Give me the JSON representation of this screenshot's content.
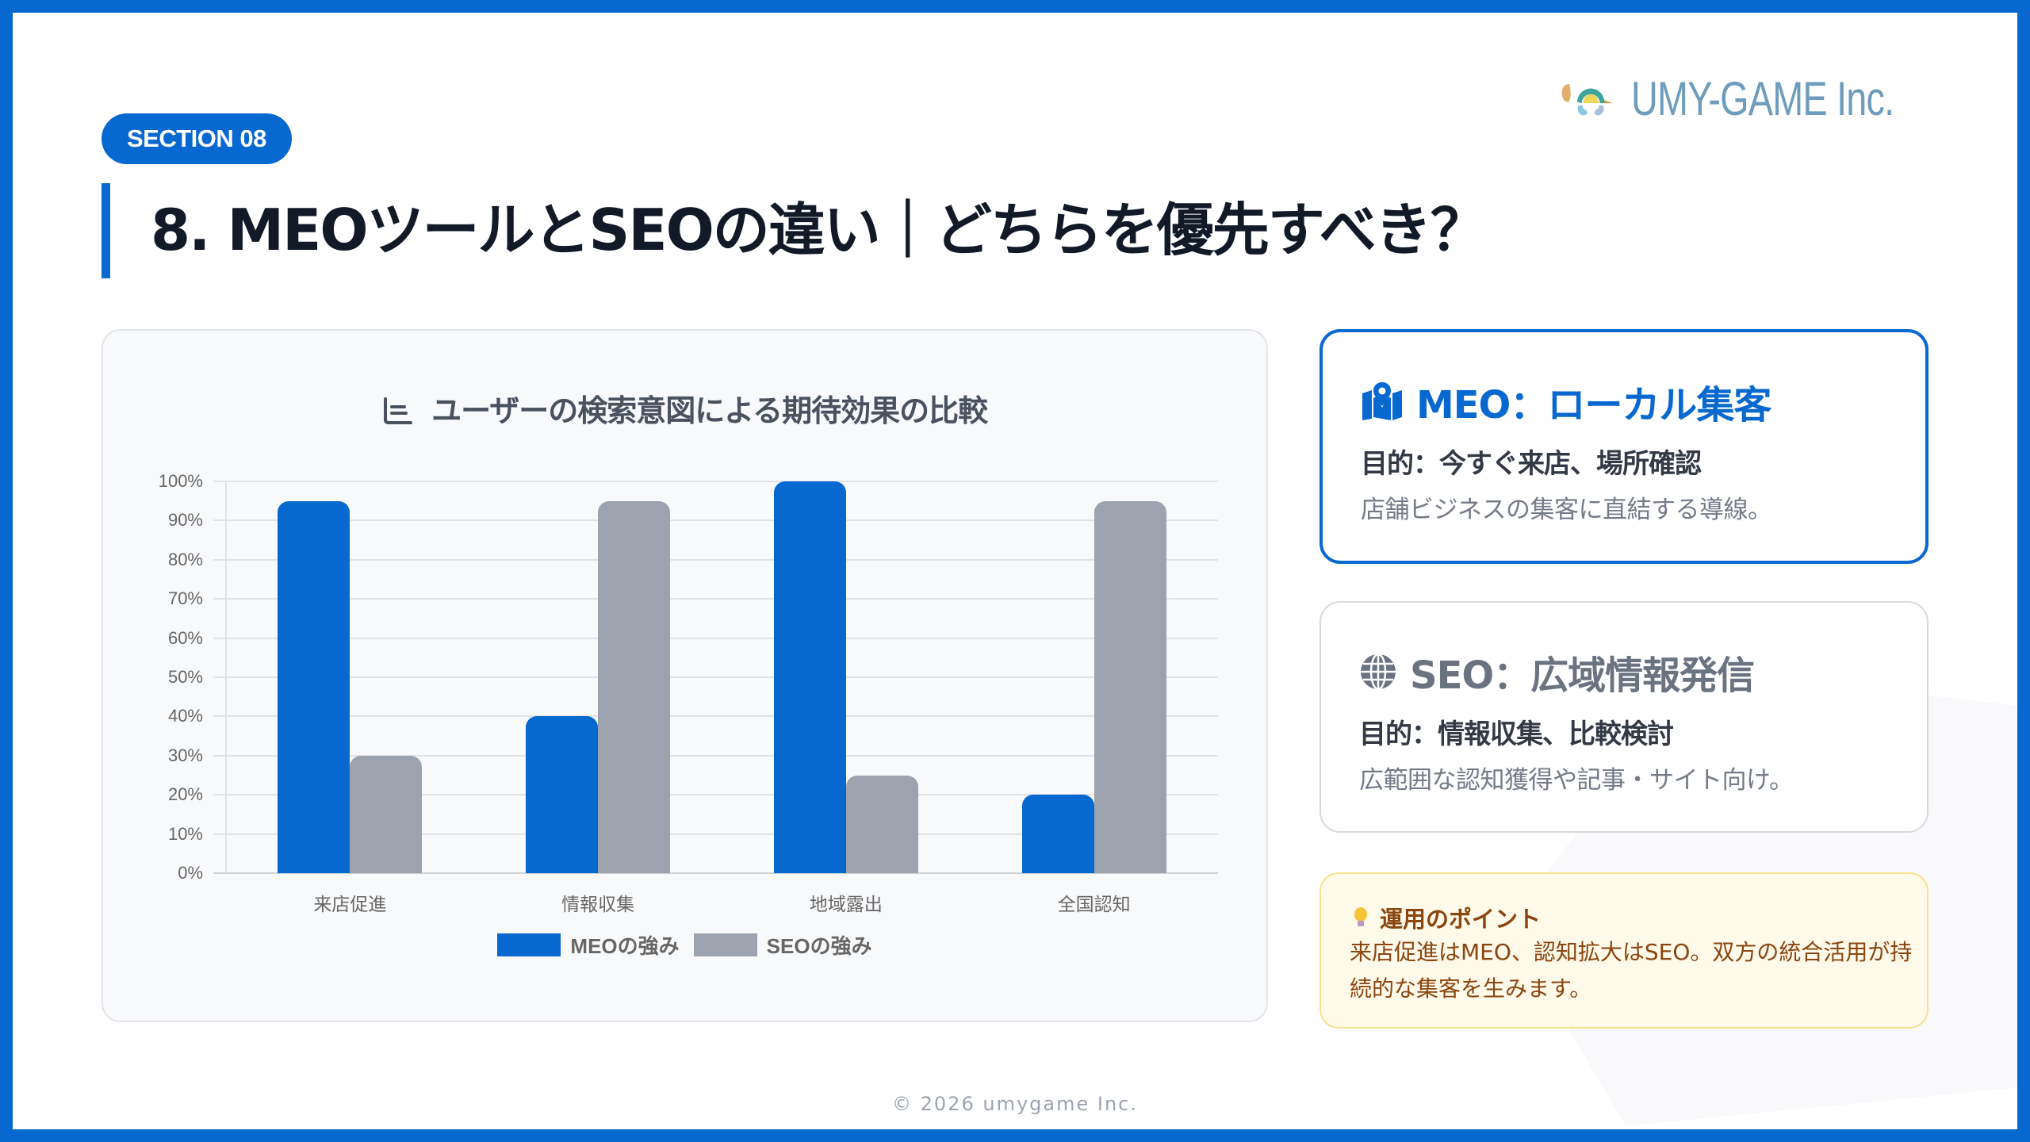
{
  "header": {
    "section_badge": "SECTION 08",
    "title": "8. MEOツールとSEOの違い｜どちらを優先すべき？",
    "logo_text": "UMY-GAME Inc."
  },
  "chart_data": {
    "type": "bar",
    "title": "ユーザーの検索意図による期待効果の比較",
    "title_icon": "bar-chart-icon",
    "categories": [
      "来店促進",
      "情報収集",
      "地域露出",
      "全国認知"
    ],
    "series": [
      {
        "name": "MEOの強み",
        "color": "#0768CF",
        "values": [
          95,
          40,
          100,
          20
        ]
      },
      {
        "name": "SEOの強み",
        "color": "#9CA3AE",
        "values": [
          30,
          95,
          25,
          95
        ]
      }
    ],
    "xlabel": "",
    "ylabel": "",
    "ylim": [
      0,
      100
    ],
    "yticks": [
      "100%",
      "90%",
      "80%",
      "70%",
      "60%",
      "50%",
      "40%",
      "30%",
      "20%",
      "10%",
      "0%"
    ],
    "grid": true,
    "legend_position": "bottom"
  },
  "cards": {
    "meo": {
      "icon": "map-pin-icon",
      "title": "MEO：ローカル集客",
      "purpose": "目的：今すぐ来店、場所確認",
      "description": "店舗ビジネスの集客に直結する導線。",
      "accent": "#0768CF"
    },
    "seo": {
      "icon": "globe-icon",
      "title": "SEO：広域情報発信",
      "purpose": "目的：情報収集、比較検討",
      "description": "広範囲な認知獲得や記事・サイト向け。",
      "accent": "#6B7280"
    }
  },
  "tip": {
    "icon": "lightbulb-icon",
    "title": "運用のポイント",
    "body": "来店促進はMEO、認知拡大はSEO。双方の統合活用が持続的な集客を生みます。"
  },
  "footer": {
    "copyright": "© 2026 umygame Inc."
  },
  "colors": {
    "primary": "#0768CF",
    "secondary": "#9CA3AE",
    "title_text": "#121A28"
  }
}
